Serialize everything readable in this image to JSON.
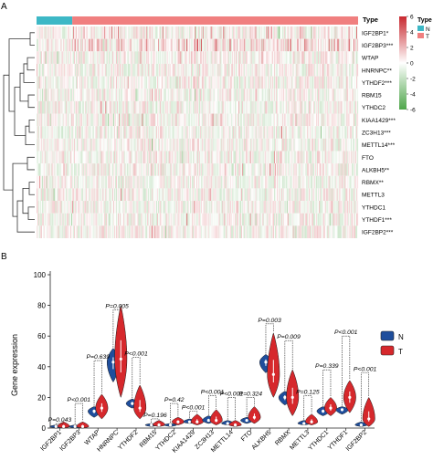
{
  "panel_a": {
    "label": "A",
    "type_title": "Type",
    "type_legend": [
      {
        "label": "N",
        "color": "#3db8c6"
      },
      {
        "label": "T",
        "color": "#f07f7f"
      }
    ],
    "scale_ticks": [
      "6",
      "4",
      "2",
      "0",
      "-2",
      "-4",
      "-6"
    ],
    "scale_colors": [
      "#c8282f",
      "#ffffff",
      "#4ea64a"
    ],
    "column_counts": {
      "N": 40,
      "T": 320
    }
  },
  "panel_b": {
    "label": "B",
    "legend": [
      {
        "label": "N",
        "color": "#1f4e9c"
      },
      {
        "label": "T",
        "color": "#d6282c"
      }
    ]
  },
  "chart_data": [
    {
      "type": "heatmap",
      "rows": [
        "IGF2BP1*",
        "IGF2BP3***",
        "WTAP",
        "HNRNPC**",
        "YTHDF2***",
        "RBM15",
        "YTHDC2",
        "KIAA1429***",
        "ZC3H13***",
        "METTL14***",
        "FTO",
        "ALKBH5**",
        "RBMX**",
        "METTL3",
        "YTHDC1",
        "YTHDF1***",
        "IGF2BP2***"
      ],
      "column_groups": [
        "N",
        "T"
      ],
      "color_scale": {
        "min": -6,
        "max": 6,
        "colors": [
          "#4ea64a",
          "#ffffff",
          "#c8282f"
        ]
      },
      "legend_title": "Type"
    },
    {
      "type": "violin",
      "ylabel": "Gene expression",
      "ylim": [
        0,
        100
      ],
      "yticks": [
        0,
        20,
        40,
        60,
        80,
        100
      ],
      "categories": [
        "IGF2BP1",
        "IGF2BP3",
        "WTAP",
        "HNRNPC",
        "YTHDF2",
        "RBM15",
        "YTHDC2",
        "KIAA1429",
        "ZC3H13",
        "METTL14",
        "FTO",
        "ALKBH5",
        "RBMX",
        "METTL3",
        "YTHDC1",
        "YTHDF1",
        "IGF2BP2"
      ],
      "series": [
        {
          "name": "N",
          "median": [
            1,
            1,
            11,
            43,
            16,
            2,
            2,
            4,
            5,
            3,
            5,
            43,
            20,
            3,
            11,
            12,
            2
          ],
          "min": [
            0,
            0,
            7,
            30,
            13,
            1,
            1,
            3,
            3,
            2,
            3,
            36,
            15,
            2,
            8,
            9,
            1
          ],
          "max": [
            2,
            2,
            14,
            52,
            19,
            3,
            3,
            6,
            8,
            5,
            7,
            48,
            24,
            5,
            14,
            14,
            4
          ]
        },
        {
          "name": "T",
          "median": [
            1,
            1,
            13,
            45,
            13,
            2,
            4,
            4,
            5,
            2,
            7,
            35,
            20,
            4,
            13,
            20,
            6
          ],
          "min": [
            0,
            0,
            6,
            20,
            6,
            1,
            2,
            2,
            2,
            1,
            3,
            20,
            8,
            2,
            8,
            10,
            1
          ],
          "max": [
            4,
            4,
            22,
            80,
            28,
            5,
            7,
            9,
            12,
            5,
            14,
            62,
            38,
            9,
            20,
            31,
            20
          ]
        }
      ],
      "pvalues": [
        "P=0.043",
        "P<0.001",
        "P=0.639",
        "P=0.005",
        "P<0.001",
        "P=0.196",
        "P=0.42",
        "P<0.001",
        "P<0.001",
        "P<0.001",
        "P=0.324",
        "P=0.003",
        "P=0.009",
        "P=0.125",
        "P=0.339",
        "P<0.001",
        "P<0.001"
      ],
      "pvalue_level": [
        3,
        16,
        44,
        77,
        46,
        6,
        16,
        11,
        21,
        20,
        20,
        68,
        57,
        21,
        38,
        60,
        36
      ]
    }
  ]
}
